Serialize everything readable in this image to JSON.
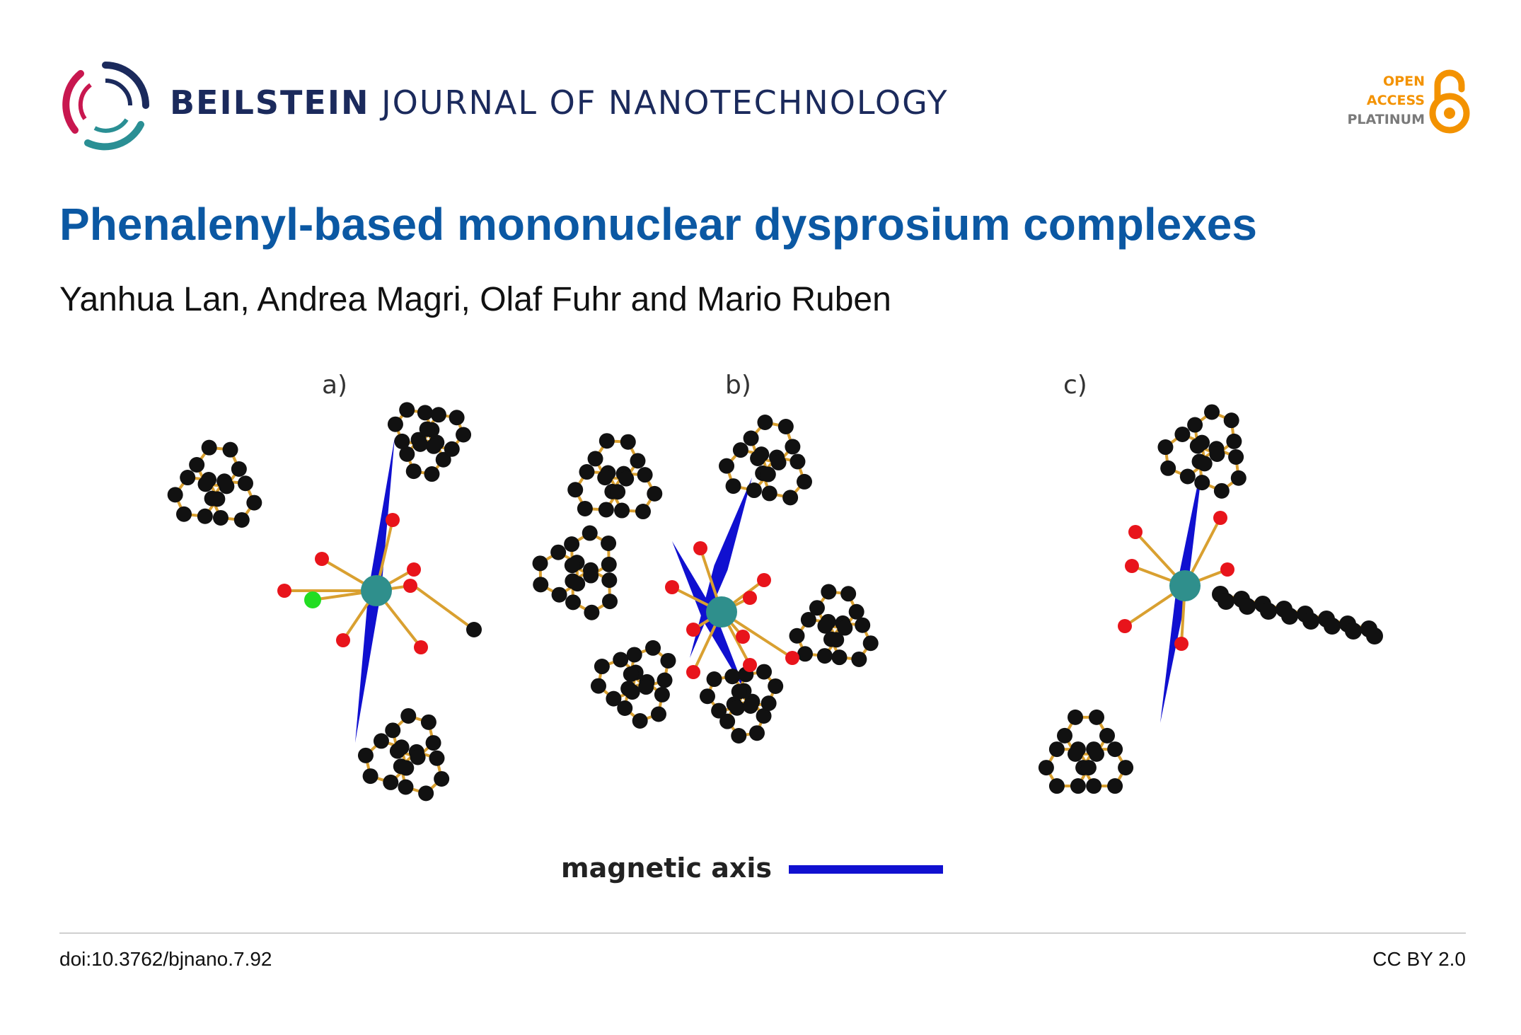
{
  "header": {
    "journal_bold": "BEILSTEIN",
    "journal_rest": "JOURNAL OF NANOTECHNOLOGY",
    "open_access": [
      "OPEN",
      "ACCESS",
      "PLATINUM"
    ]
  },
  "article": {
    "title": "Phenalenyl-based mononuclear dysprosium complexes",
    "authors": "Yanhua Lan, Andrea Magri, Olaf Fuhr and Mario Ruben"
  },
  "figure": {
    "panel_labels": [
      "a)",
      "b)",
      "c)"
    ],
    "legend_label": "magnetic axis",
    "colors": {
      "carbon": "#111111",
      "oxygen": "#e8141b",
      "chlorine": "#22dd22",
      "dysprosium": "#2f8f8c",
      "bond": "#d9a030",
      "magnetic_axis": "#1010d0"
    }
  },
  "footer": {
    "doi": "doi:10.3762/bjnano.7.92",
    "license": "CC BY 2.0"
  }
}
